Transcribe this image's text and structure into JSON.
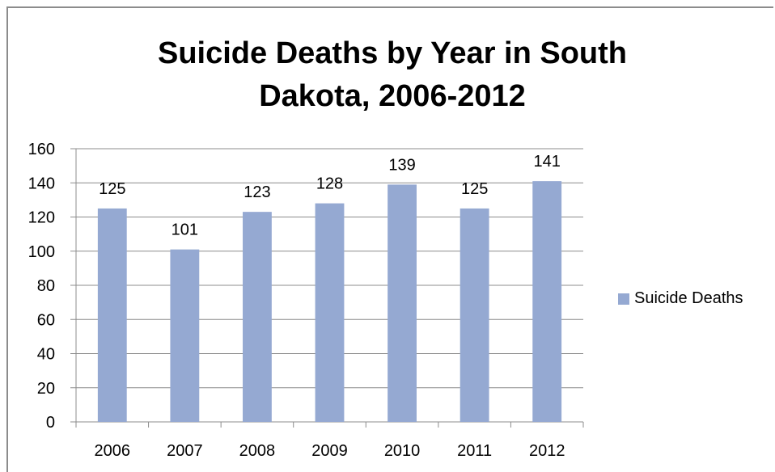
{
  "chart_data": {
    "type": "bar",
    "title_lines": [
      "Suicide Deaths by Year in South",
      "Dakota, 2006-2012"
    ],
    "categories": [
      "2006",
      "2007",
      "2008",
      "2009",
      "2010",
      "2011",
      "2012"
    ],
    "series": [
      {
        "name": "Suicide Deaths",
        "values": [
          125,
          101,
          123,
          128,
          139,
          125,
          141
        ],
        "color": "#95a9d2"
      }
    ],
    "data_labels": [
      "125",
      "101",
      "123",
      "128",
      "139",
      "125",
      "141"
    ],
    "ylim": [
      0,
      160
    ],
    "yticks": [
      "0",
      "20",
      "40",
      "60",
      "80",
      "100",
      "120",
      "140",
      "160"
    ],
    "grid": true,
    "legend_position": "right"
  }
}
